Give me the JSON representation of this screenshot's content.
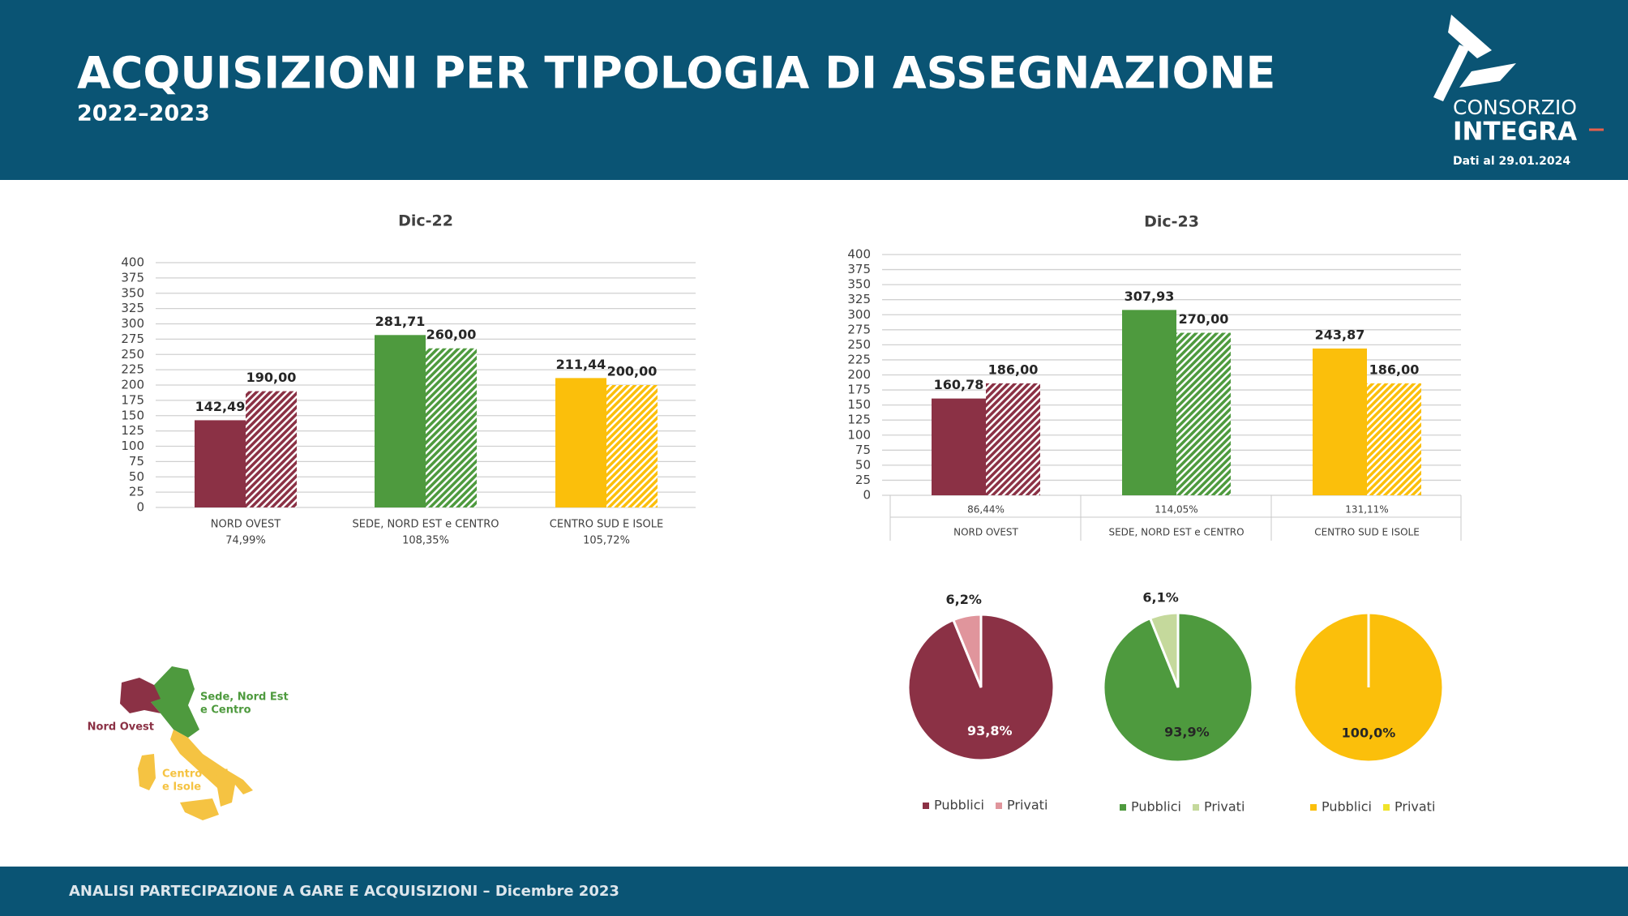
{
  "header": {
    "title": "ACQUISIZIONI PER TIPOLOGIA DI ASSEGNAZIONE",
    "subtitle": "2022–2023",
    "logo_top": "CONSORZIO",
    "logo_bottom": "INTEGRA",
    "date_note": "Dati al 29.01.2024"
  },
  "footer": {
    "text": "ANALISI PARTECIPAZIONE A GARE E ACQUISIZIONI – Dicembre 2023"
  },
  "map": {
    "labels": [
      [
        "Sede, Nord Est",
        "e Centro"
      ],
      [
        "Nord Ovest"
      ],
      [
        "Centro Sud",
        "e Isole"
      ]
    ],
    "colors": [
      "#4e9a3e",
      "#8b3145",
      "#f5c342"
    ]
  },
  "chart_data": [
    {
      "type": "bar",
      "title": "Dic-22",
      "categories": [
        "NORD OVEST",
        "SEDE, NORD EST e CENTRO",
        "CENTRO SUD E ISOLE"
      ],
      "category_notes": [
        "74,99%",
        "108,35%",
        "105,72%"
      ],
      "colors": [
        "#8b3145",
        "#4e9a3e",
        "#fbbf0b"
      ],
      "series": [
        {
          "values": [
            142.49,
            281.71,
            211.44
          ],
          "value_labels": [
            "142,49",
            "281,71",
            "211,44"
          ]
        },
        {
          "values": [
            190,
            260,
            200
          ],
          "value_labels": [
            "190,00",
            "260,00",
            "200,00"
          ],
          "pattern": "hatch"
        }
      ],
      "ylim": [
        0,
        400
      ],
      "yticks": [
        0,
        25,
        50,
        75,
        100,
        125,
        150,
        175,
        200,
        225,
        250,
        275,
        300,
        325,
        350,
        375,
        400
      ],
      "grid": true
    },
    {
      "type": "bar",
      "title": "Dic-23",
      "categories": [
        "NORD OVEST",
        "SEDE, NORD EST e CENTRO",
        "CENTRO SUD E ISOLE"
      ],
      "category_notes": [
        "86,44%",
        "114,05%",
        "131,11%"
      ],
      "colors": [
        "#8b3145",
        "#4e9a3e",
        "#fbbf0b"
      ],
      "series": [
        {
          "values": [
            160.78,
            307.93,
            243.87
          ],
          "value_labels": [
            "160,78",
            "307,93",
            "243,87"
          ]
        },
        {
          "values": [
            186,
            270,
            186
          ],
          "value_labels": [
            "186,00",
            "270,00",
            "186,00"
          ],
          "pattern": "hatch"
        }
      ],
      "ylim": [
        0,
        400
      ],
      "yticks": [
        0,
        25,
        50,
        75,
        100,
        125,
        150,
        175,
        200,
        225,
        250,
        275,
        300,
        325,
        350,
        375,
        400
      ],
      "grid": true,
      "axis_table": true
    },
    {
      "type": "pie",
      "categories": [
        "Pubblici",
        "Privati"
      ],
      "values": [
        93.8,
        6.2
      ],
      "value_labels": [
        "93,8%",
        "6,2%"
      ],
      "colors": [
        "#8b3145",
        "#e0959c"
      ],
      "legend": "bottom"
    },
    {
      "type": "pie",
      "categories": [
        "Pubblici",
        "Privati"
      ],
      "values": [
        93.9,
        6.1
      ],
      "value_labels": [
        "93,9%",
        "6,1%"
      ],
      "colors": [
        "#4e9a3e",
        "#c5d99c"
      ],
      "legend": "bottom"
    },
    {
      "type": "pie",
      "categories": [
        "Pubblici",
        "Privati"
      ],
      "values": [
        100,
        0
      ],
      "value_labels": [
        "100,0%",
        null
      ],
      "colors": [
        "#fbbf0b",
        "#f0e32a"
      ],
      "legend": "bottom"
    }
  ]
}
